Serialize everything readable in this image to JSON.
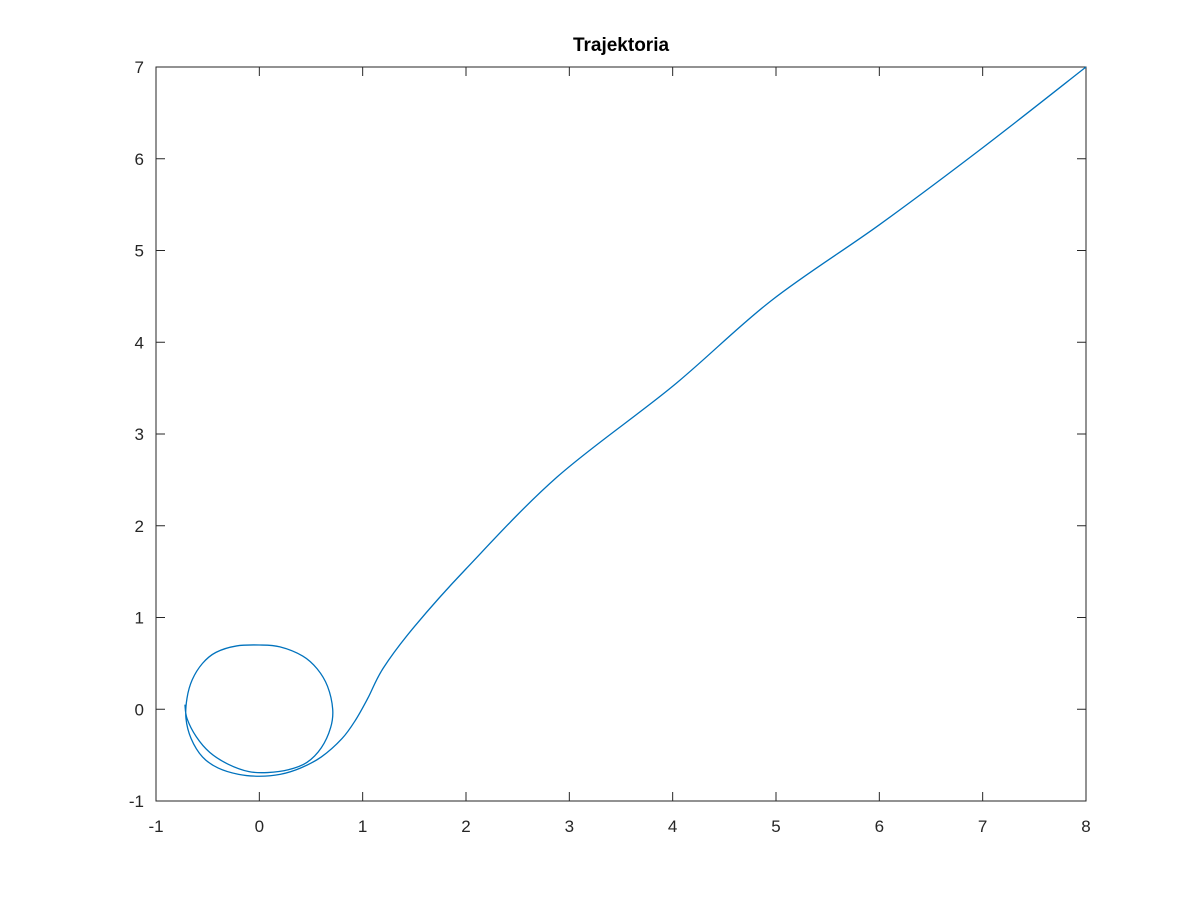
{
  "chart_data": {
    "type": "line",
    "title": "Trajektoria",
    "xlabel": "",
    "ylabel": "",
    "xlim": [
      -1,
      8
    ],
    "ylim": [
      -1,
      7
    ],
    "x_ticks": [
      -1,
      0,
      1,
      2,
      3,
      4,
      5,
      6,
      7,
      8
    ],
    "y_ticks": [
      -1,
      0,
      1,
      2,
      3,
      4,
      5,
      6,
      7
    ],
    "x_tick_labels": [
      "-1",
      "0",
      "1",
      "2",
      "3",
      "4",
      "5",
      "6",
      "7",
      "8"
    ],
    "y_tick_labels": [
      "-1",
      "0",
      "1",
      "2",
      "3",
      "4",
      "5",
      "6",
      "7"
    ],
    "grid": false,
    "box": true,
    "line_color": "#0072BD",
    "axis_color": "#262626",
    "series": [
      {
        "x": [
          8.0,
          7.0,
          6.0,
          4.95,
          4.0,
          2.88,
          2.0,
          1.5,
          1.2,
          1.05,
          0.93,
          0.8,
          0.6,
          0.4,
          0.2,
          0.0,
          -0.2,
          -0.4,
          -0.55,
          -0.66,
          -0.71,
          -0.7,
          -0.65,
          -0.55,
          -0.42,
          -0.22,
          0.0,
          0.2,
          0.42,
          0.56,
          0.66,
          0.71,
          0.69,
          0.6,
          0.46,
          0.28,
          0.08,
          -0.1,
          -0.3,
          -0.48,
          -0.61,
          -0.7,
          -0.72
        ],
        "y": [
          7.0,
          6.12,
          5.28,
          4.45,
          3.52,
          2.53,
          1.53,
          0.9,
          0.45,
          0.12,
          -0.12,
          -0.32,
          -0.52,
          -0.64,
          -0.71,
          -0.73,
          -0.71,
          -0.64,
          -0.52,
          -0.32,
          -0.1,
          0.12,
          0.32,
          0.5,
          0.62,
          0.69,
          0.7,
          0.68,
          0.58,
          0.44,
          0.25,
          0.0,
          -0.2,
          -0.42,
          -0.58,
          -0.66,
          -0.69,
          -0.68,
          -0.6,
          -0.47,
          -0.3,
          -0.1,
          0.05
        ]
      }
    ]
  }
}
